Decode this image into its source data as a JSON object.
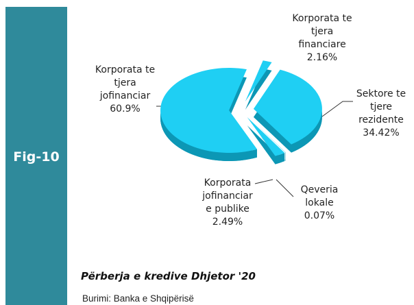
{
  "figure_label": "Fig-10",
  "chart_data": {
    "type": "pie",
    "title": "Përberja e kredive Dhjetor '20",
    "source": "Burimi: Banka e Shqipërisë",
    "categories": [
      "Korporata te tjera financiare",
      "Sektore te tjere rezidente",
      "Qeveria lokale",
      "Korporata jofinanciar e publike",
      "Korporata te tjera jofinanciar"
    ],
    "values": [
      2.16,
      34.42,
      0.07,
      2.49,
      60.9
    ],
    "value_labels": [
      "2.16%",
      "34.42%",
      "0.07%",
      "2.49%",
      "60.9%"
    ],
    "color": "#1fcff3",
    "side_color": "#0c97b5"
  }
}
